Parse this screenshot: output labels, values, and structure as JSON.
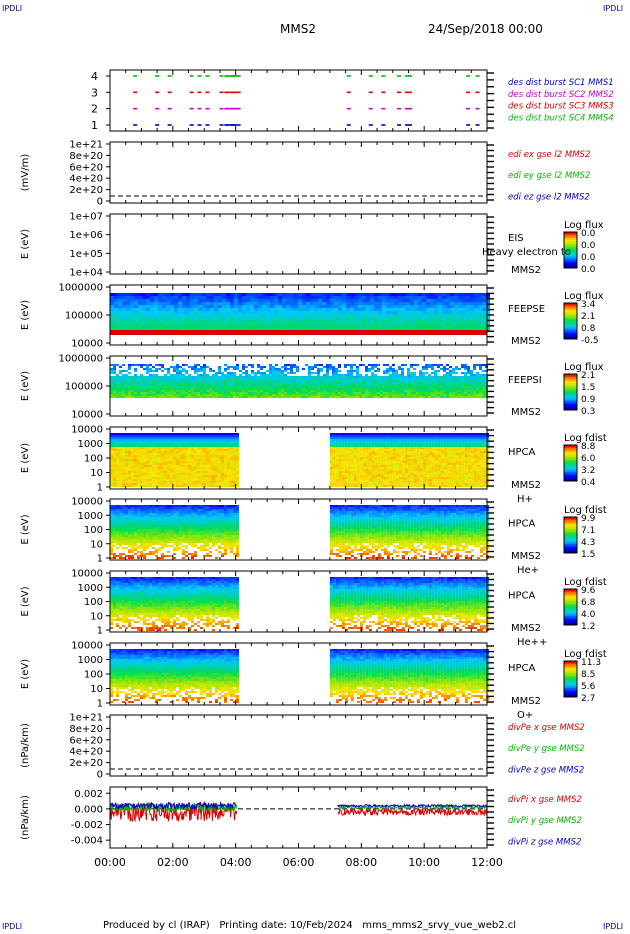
{
  "corners": {
    "tl": "IPDLI",
    "tr": "IPDLI",
    "bl": "IPDLI",
    "br": "IPDLI"
  },
  "header": {
    "mission": "MMS2",
    "date": "24/Sep/2018 00:00"
  },
  "footer": {
    "text": "Produced by cl (IRAP)   Printing date: 10/Feb/2024   mms_mms2_srvy_vue_web2.cl"
  },
  "time_axis": {
    "ticks": [
      "00:00",
      "02:00",
      "04:00",
      "06:00",
      "08:00",
      "10:00",
      "12:00"
    ]
  },
  "colors": {
    "red": "#dd0000",
    "green": "#00bb00",
    "blue": "#0000cc",
    "magenta": "#cc00cc"
  },
  "chart_data": [
    {
      "type": "scatter",
      "id": "burst",
      "yticks": [
        "4",
        "3",
        "2",
        "1"
      ],
      "legend": [
        {
          "text": "des dist burst SC1 MMS1",
          "color": "#0000cc"
        },
        {
          "text": "des dist burst SC2 MMS2",
          "color": "#cc00cc"
        },
        {
          "text": "des dist burst SC3 MMS3",
          "color": "#dd0000"
        },
        {
          "text": "des dist burst SC4 MMS4",
          "color": "#00bb00"
        }
      ],
      "x_hours": [
        0.8,
        1.5,
        1.9,
        2.6,
        2.85,
        3.1,
        3.55,
        3.7,
        3.85,
        4.0,
        7.6,
        8.3,
        8.7,
        9.2,
        9.45,
        9.55,
        11.4,
        11.7
      ]
    },
    {
      "type": "line",
      "id": "edi",
      "ylabel": "(mV/m)",
      "yticks": [
        "1e+21",
        "8e+20",
        "6e+20",
        "4e+20",
        "2e+20",
        "0"
      ],
      "legend": [
        {
          "text": "edi ex gse l2 MMS2",
          "color": "#dd0000"
        },
        {
          "text": "edi ey gse l2 MMS2",
          "color": "#00bb00"
        },
        {
          "text": "edi ez gse l2 MMS2",
          "color": "#0000cc"
        }
      ]
    },
    {
      "type": "heatmap",
      "id": "eis",
      "ylabel": "E (eV)",
      "yticks": [
        "1e+07",
        "1e+06",
        "1e+05",
        "1e+04"
      ],
      "instrument": "EIS",
      "sc": "MMS2",
      "overlay": "Heavy electron to",
      "cbar_title": "Log flux",
      "cbar_ticks": [
        "0.0",
        "0.0",
        "0.0",
        "0.0"
      ]
    },
    {
      "type": "heatmap",
      "id": "feepse",
      "ylabel": "E (eV)",
      "yticks": [
        "1000000",
        "100000",
        "10000"
      ],
      "instrument": "FEEPSE",
      "sc": "MMS2",
      "cbar_title": "Log flux",
      "cbar_ticks": [
        "3.4",
        "2.1",
        "0.8",
        "-0.5"
      ],
      "coverage_hours": [
        0,
        12
      ]
    },
    {
      "type": "heatmap",
      "id": "feepsi",
      "ylabel": "E (eV)",
      "yticks": [
        "1000000",
        "100000",
        "10000"
      ],
      "instrument": "FEEPSI",
      "sc": "MMS2",
      "cbar_title": "Log flux",
      "cbar_ticks": [
        "2.1",
        "1.5",
        "0.9",
        "0.3"
      ],
      "coverage_hours": [
        0,
        12
      ]
    },
    {
      "type": "heatmap",
      "id": "hpca_h",
      "ylabel": "E (eV)",
      "yticks": [
        "10000",
        "1000",
        "100",
        "10",
        "1"
      ],
      "instrument": "HPCA",
      "sc": "MMS2",
      "species": "H+",
      "cbar_title": "Log fdist",
      "cbar_ticks": [
        "8.8",
        "6.0",
        "3.2",
        "0.4"
      ],
      "coverage_hours": [
        [
          0,
          4.05
        ],
        [
          7.0,
          12
        ]
      ]
    },
    {
      "type": "heatmap",
      "id": "hpca_he",
      "ylabel": "E (eV)",
      "yticks": [
        "10000",
        "1000",
        "100",
        "10",
        "1"
      ],
      "instrument": "HPCA",
      "sc": "MMS2",
      "species": "He+",
      "cbar_title": "Log fdist",
      "cbar_ticks": [
        "9.9",
        "7.1",
        "4.3",
        "1.5"
      ],
      "coverage_hours": [
        [
          0,
          4.05
        ],
        [
          7.0,
          12
        ]
      ]
    },
    {
      "type": "heatmap",
      "id": "hpca_hepp",
      "ylabel": "E (eV)",
      "yticks": [
        "10000",
        "1000",
        "100",
        "10",
        "1"
      ],
      "instrument": "HPCA",
      "sc": "MMS2",
      "species": "He++",
      "cbar_title": "Log fdist",
      "cbar_ticks": [
        "9.6",
        "6.8",
        "4.0",
        "1.2"
      ],
      "coverage_hours": [
        [
          0,
          4.05
        ],
        [
          7.0,
          12
        ]
      ]
    },
    {
      "type": "heatmap",
      "id": "hpca_o",
      "ylabel": "E (eV)",
      "yticks": [
        "10000",
        "1000",
        "100",
        "10",
        "1"
      ],
      "instrument": "HPCA",
      "sc": "MMS2",
      "species": "O+",
      "cbar_title": "Log fdist",
      "cbar_ticks": [
        "11.3",
        "8.5",
        "5.6",
        "2.7"
      ],
      "coverage_hours": [
        [
          0,
          4.05
        ],
        [
          7.0,
          12
        ]
      ]
    },
    {
      "type": "line",
      "id": "divpe",
      "ylabel": "(nPa/km)",
      "yticks": [
        "1e+21",
        "8e+20",
        "6e+20",
        "4e+20",
        "2e+20",
        "0"
      ],
      "legend": [
        {
          "text": "divPe x gse MMS2",
          "color": "#dd0000"
        },
        {
          "text": "divPe y gse MMS2",
          "color": "#00bb00"
        },
        {
          "text": "divPe z gse MMS2",
          "color": "#0000cc"
        }
      ]
    },
    {
      "type": "line",
      "id": "divpi",
      "ylabel": "(nPa/km)",
      "yticks": [
        "0.002",
        "0.000",
        "-0.002",
        "-0.004"
      ],
      "ylim": [
        -0.005,
        0.0028
      ],
      "legend": [
        {
          "text": "divPi x gse MMS2",
          "color": "#dd0000"
        },
        {
          "text": "divPi y gse MMS2",
          "color": "#00bb00"
        },
        {
          "text": "divPi z gse MMS2",
          "color": "#0000cc"
        }
      ],
      "coverage_hours": [
        [
          0,
          4.05
        ],
        [
          7.25,
          12
        ]
      ]
    }
  ]
}
